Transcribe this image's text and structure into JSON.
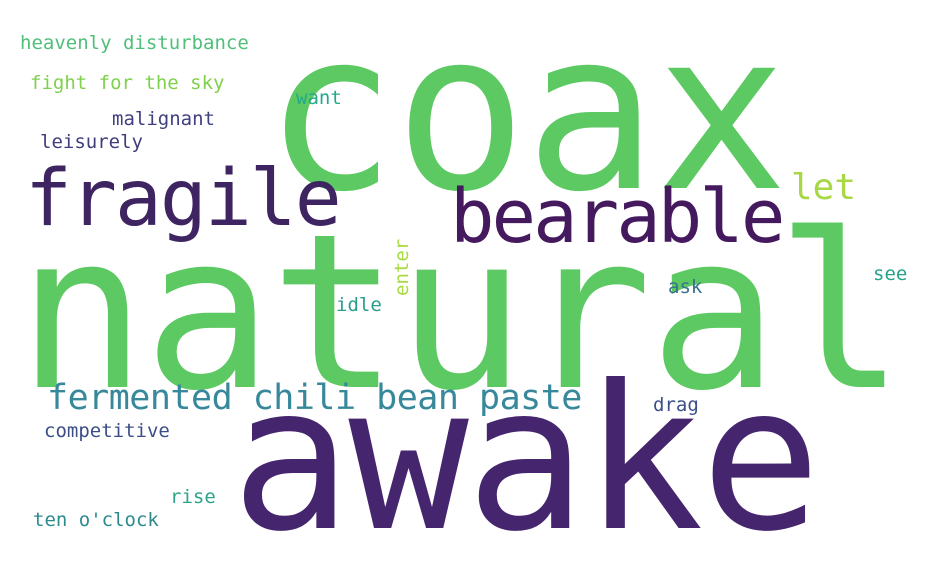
{
  "word_cloud": {
    "background": "#ffffff",
    "words": [
      {
        "key": "coax",
        "text": "coax",
        "color": "#5dc963"
      },
      {
        "key": "natural",
        "text": "natural",
        "color": "#5dc963"
      },
      {
        "key": "awake",
        "text": "awake",
        "color": "#46256f"
      },
      {
        "key": "fragile",
        "text": "fragile",
        "color": "#3e2461"
      },
      {
        "key": "bearable",
        "text": "bearable",
        "color": "#45195e"
      },
      {
        "key": "fcbp",
        "text": "fermented chili bean paste",
        "color": "#36889a"
      },
      {
        "key": "let",
        "text": "let",
        "color": "#a8d845"
      },
      {
        "key": "hd",
        "text": "heavenly disturbance",
        "color": "#4fbf7a"
      },
      {
        "key": "ffts",
        "text": "fight for the sky",
        "color": "#7fd04b"
      },
      {
        "key": "want",
        "text": "want",
        "color": "#23a98a"
      },
      {
        "key": "malignant",
        "text": "malignant",
        "color": "#404080"
      },
      {
        "key": "leisurely",
        "text": "leisurely",
        "color": "#3f3d7d"
      },
      {
        "key": "enter",
        "text": "enter",
        "color": "#a8db40"
      },
      {
        "key": "see",
        "text": "see",
        "color": "#26a28a"
      },
      {
        "key": "ask",
        "text": "ask",
        "color": "#3b6f8c"
      },
      {
        "key": "idle",
        "text": "idle",
        "color": "#2a9c8b"
      },
      {
        "key": "drag",
        "text": "drag",
        "color": "#3b4f8a"
      },
      {
        "key": "competitive",
        "text": "competitive",
        "color": "#3d4d88"
      },
      {
        "key": "rise",
        "text": "rise",
        "color": "#2ba58a"
      },
      {
        "key": "tenoclock",
        "text": "ten o'clock",
        "color": "#2d8b8e"
      }
    ]
  }
}
